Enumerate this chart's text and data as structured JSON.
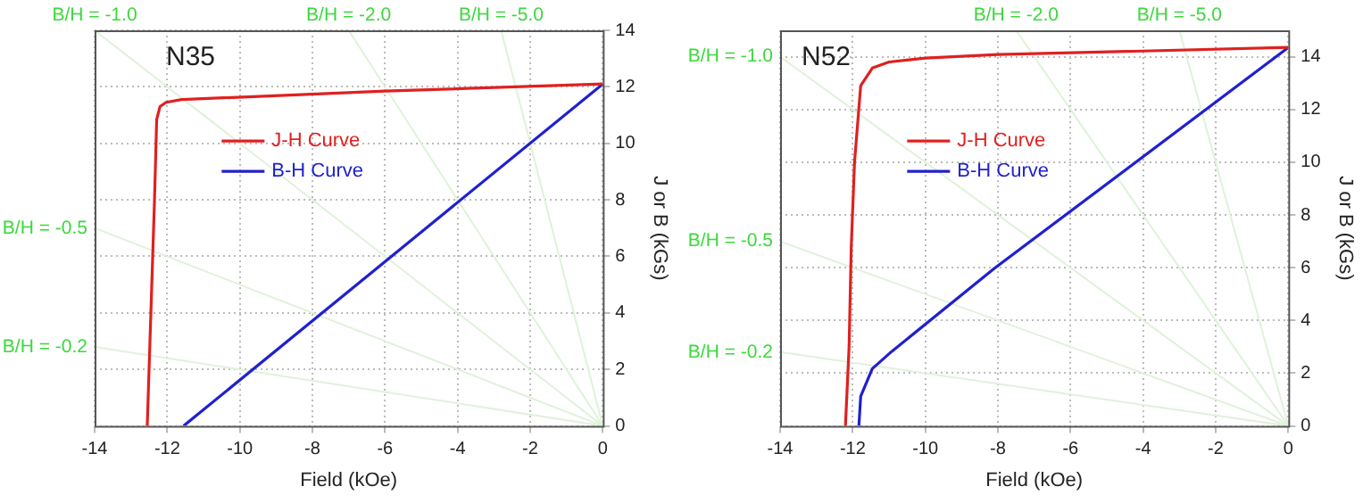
{
  "chart_data": [
    {
      "type": "line",
      "title": "N35",
      "xlabel": "Field (kOe)",
      "ylabel": "J or B (kGs)",
      "xlim": [
        -14,
        0
      ],
      "ylim": [
        0,
        14
      ],
      "xticks": [
        -14,
        -12,
        -10,
        -8,
        -6,
        -4,
        -2,
        0
      ],
      "yticks": [
        0,
        2,
        4,
        6,
        8,
        10,
        12,
        14
      ],
      "grid": true,
      "legend": "top left",
      "marker": "none",
      "series": [
        {
          "name": "J-H Curve",
          "color": "#e02020",
          "x": [
            -12.55,
            -12.45,
            -12.35,
            -12.29,
            -12.2,
            -12.03,
            -11.6,
            -6,
            0
          ],
          "values": [
            0,
            4,
            8,
            10.85,
            11.3,
            11.45,
            11.55,
            11.85,
            12.1
          ]
        },
        {
          "name": "B-H Curve",
          "color": "#2020d0",
          "x": [
            -11.55,
            0
          ],
          "values": [
            0,
            12.1
          ]
        },
        {
          "color": "#dff2da",
          "x": [
            -14,
            0
          ],
          "values": [
            14,
            0
          ]
        },
        {
          "color": "#dff2da",
          "x": [
            -7,
            0
          ],
          "values": [
            14,
            0
          ]
        },
        {
          "color": "#dff2da",
          "x": [
            -2.8,
            0
          ],
          "values": [
            14,
            0
          ]
        },
        {
          "color": "#dff2da",
          "x": [
            -14,
            0
          ],
          "values": [
            7,
            0
          ]
        },
        {
          "color": "#dff2da",
          "x": [
            -14,
            0
          ],
          "values": [
            2.8,
            0
          ]
        }
      ],
      "annotations": [
        {
          "text": "B/H = -1.0",
          "x": -14,
          "y": 14
        },
        {
          "text": "B/H = -2.0",
          "x": -7,
          "y": 14
        },
        {
          "text": "B/H = -5.0",
          "x": -2.8,
          "y": 14
        },
        {
          "text": "B/H = -0.5",
          "x": -14,
          "y": 7
        },
        {
          "text": "B/H = -0.2",
          "x": -14,
          "y": 2.8
        }
      ]
    },
    {
      "type": "line",
      "title": "N52",
      "xlabel": "Field (kOe)",
      "ylabel": "J or B (kGs)",
      "xlim": [
        -14,
        0
      ],
      "ylim": [
        0,
        15
      ],
      "xticks": [
        -14,
        -12,
        -10,
        -8,
        -6,
        -4,
        -2,
        0
      ],
      "yticks": [
        0,
        2,
        4,
        6,
        8,
        10,
        12,
        14
      ],
      "grid": true,
      "legend": "top left",
      "marker": "none",
      "series": [
        {
          "name": "J-H Curve",
          "color": "#e02020",
          "x": [
            -12.2,
            -12.1,
            -12.04,
            -11.95,
            -11.78,
            -11.46,
            -11,
            -10,
            -8,
            0
          ],
          "values": [
            0,
            3,
            6.8,
            10,
            12.9,
            13.57,
            13.8,
            13.95,
            14.08,
            14.35
          ]
        },
        {
          "name": "B-H Curve",
          "color": "#2020d0",
          "x": [
            -11.83,
            -11.78,
            -11.46,
            -10.92,
            -8.1,
            0
          ],
          "values": [
            0,
            1.12,
            2.17,
            2.83,
            5.97,
            14.35
          ]
        },
        {
          "color": "#dff2da",
          "x": [
            -14,
            0
          ],
          "values": [
            14,
            0
          ]
        },
        {
          "color": "#dff2da",
          "x": [
            -7.5,
            0
          ],
          "values": [
            15,
            0
          ]
        },
        {
          "color": "#dff2da",
          "x": [
            -3,
            0
          ],
          "values": [
            15,
            0
          ]
        },
        {
          "color": "#dff2da",
          "x": [
            -14,
            0
          ],
          "values": [
            7,
            0
          ]
        },
        {
          "color": "#dff2da",
          "x": [
            -14,
            0
          ],
          "values": [
            2.8,
            0
          ]
        }
      ],
      "annotations": [
        {
          "text": "B/H = -1.0",
          "x": -14,
          "y": 14
        },
        {
          "text": "B/H = -2.0",
          "x": -7.5,
          "y": 15
        },
        {
          "text": "B/H = -5.0",
          "x": -3,
          "y": 15
        },
        {
          "text": "B/H = -0.5",
          "x": -14,
          "y": 7
        },
        {
          "text": "B/H = -0.2",
          "x": -14,
          "y": 2.8
        }
      ]
    }
  ]
}
